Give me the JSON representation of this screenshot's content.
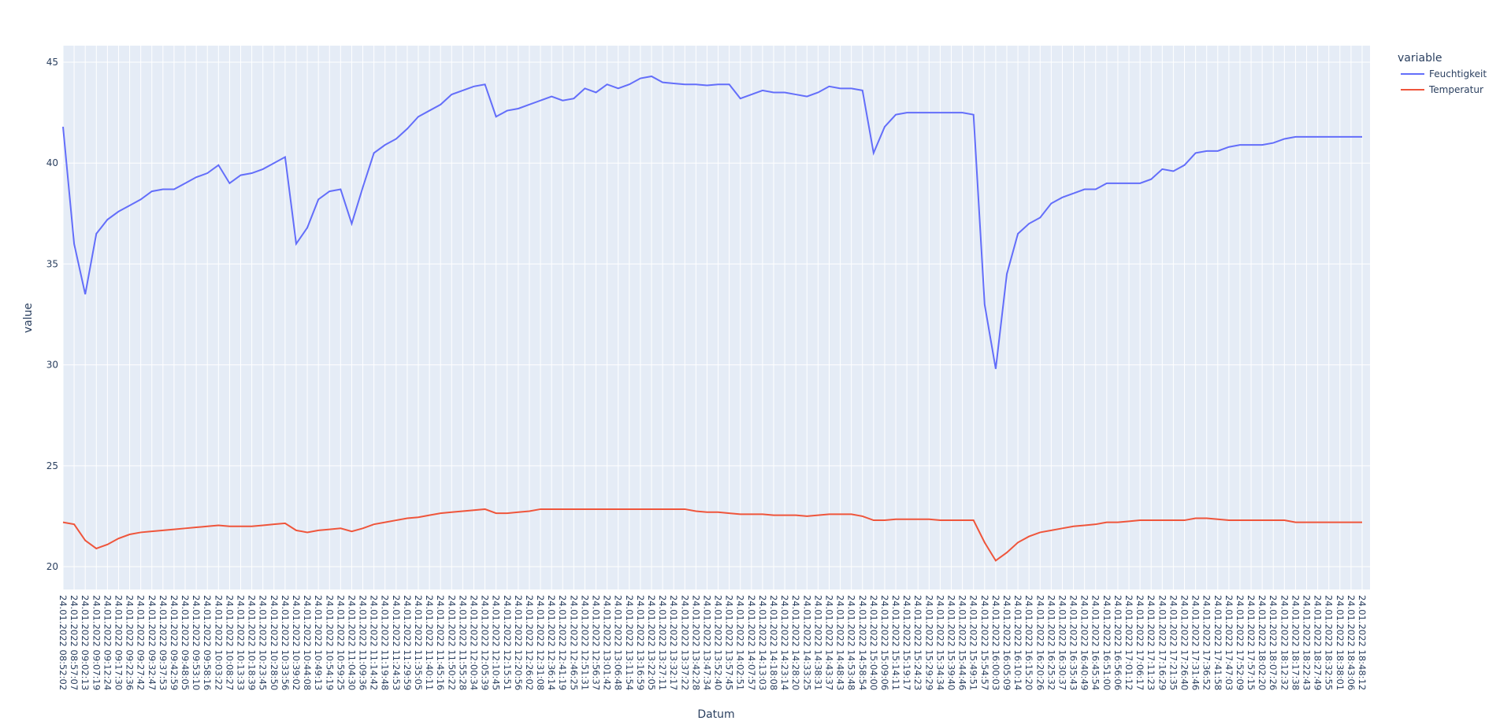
{
  "chart_data": {
    "type": "line",
    "x_label": "Datum",
    "y_label": "value",
    "legend_title": "variable",
    "categories": [
      "24.01.2022 08:52:02",
      "24.01.2022 08:57:07",
      "24.01.2022 09:02:13",
      "24.01.2022 09:07:19",
      "24.01.2022 09:12:24",
      "24.01.2022 09:17:30",
      "24.01.2022 09:22:36",
      "24.01.2022 09:27:42",
      "24.01.2022 09:32:47",
      "24.01.2022 09:37:53",
      "24.01.2022 09:42:59",
      "24.01.2022 09:48:05",
      "24.01.2022 09:53:10",
      "24.01.2022 09:58:16",
      "24.01.2022 10:03:22",
      "24.01.2022 10:08:27",
      "24.01.2022 10:13:33",
      "24.01.2022 10:18:39",
      "24.01.2022 10:23:45",
      "24.01.2022 10:28:50",
      "24.01.2022 10:33:56",
      "24.01.2022 10:39:02",
      "24.01.2022 10:44:08",
      "24.01.2022 10:49:13",
      "24.01.2022 10:54:19",
      "24.01.2022 10:59:25",
      "24.01.2022 11:04:30",
      "24.01.2022 11:09:36",
      "24.01.2022 11:14:42",
      "24.01.2022 11:19:48",
      "24.01.2022 11:24:53",
      "24.01.2022 11:29:59",
      "24.01.2022 11:35:05",
      "24.01.2022 11:40:11",
      "24.01.2022 11:45:16",
      "24.01.2022 11:50:22",
      "24.01.2022 11:55:28",
      "24.01.2022 12:00:34",
      "24.01.2022 12:05:39",
      "24.01.2022 12:10:45",
      "24.01.2022 12:15:51",
      "24.01.2022 12:20:56",
      "24.01.2022 12:26:02",
      "24.01.2022 12:31:08",
      "24.01.2022 12:36:14",
      "24.01.2022 12:41:19",
      "24.01.2022 12:46:25",
      "24.01.2022 12:51:31",
      "24.01.2022 12:56:37",
      "24.01.2022 13:01:42",
      "24.01.2022 13:06:48",
      "24.01.2022 13:11:54",
      "24.01.2022 13:16:59",
      "24.01.2022 13:22:05",
      "24.01.2022 13:27:11",
      "24.01.2022 13:32:17",
      "24.01.2022 13:37:22",
      "24.01.2022 13:42:28",
      "24.01.2022 13:47:34",
      "24.01.2022 13:52:40",
      "24.01.2022 13:57:45",
      "24.01.2022 14:02:51",
      "24.01.2022 14:07:57",
      "24.01.2022 14:13:03",
      "24.01.2022 14:18:08",
      "24.01.2022 14:23:14",
      "24.01.2022 14:28:20",
      "24.01.2022 14:33:25",
      "24.01.2022 14:38:31",
      "24.01.2022 14:43:37",
      "24.01.2022 14:48:43",
      "24.01.2022 14:53:48",
      "24.01.2022 14:58:54",
      "24.01.2022 15:04:00",
      "24.01.2022 15:09:06",
      "24.01.2022 15:14:11",
      "24.01.2022 15:19:17",
      "24.01.2022 15:24:23",
      "24.01.2022 15:29:29",
      "24.01.2022 15:34:34",
      "24.01.2022 15:39:40",
      "24.01.2022 15:44:46",
      "24.01.2022 15:49:51",
      "24.01.2022 15:54:57",
      "24.01.2022 16:00:03",
      "24.01.2022 16:05:09",
      "24.01.2022 16:10:14",
      "24.01.2022 16:15:20",
      "24.01.2022 16:20:26",
      "24.01.2022 16:25:32",
      "24.01.2022 16:30:37",
      "24.01.2022 16:35:43",
      "24.01.2022 16:40:49",
      "24.01.2022 16:45:54",
      "24.01.2022 16:51:00",
      "24.01.2022 16:56:06",
      "24.01.2022 17:01:12",
      "24.01.2022 17:06:17",
      "24.01.2022 17:11:23",
      "24.01.2022 17:16:29",
      "24.01.2022 17:21:35",
      "24.01.2022 17:26:40",
      "24.01.2022 17:31:46",
      "24.01.2022 17:36:52",
      "24.01.2022 17:41:58",
      "24.01.2022 17:47:03",
      "24.01.2022 17:52:09",
      "24.01.2022 17:57:15",
      "24.01.2022 18:02:20",
      "24.01.2022 18:07:26",
      "24.01.2022 18:12:32",
      "24.01.2022 18:17:38",
      "24.01.2022 18:22:43",
      "24.01.2022 18:27:49",
      "24.01.2022 18:32:55",
      "24.01.2022 18:38:01",
      "24.01.2022 18:43:06",
      "24.01.2022 18:48:12"
    ],
    "series": [
      {
        "name": "Feuchtigkeit",
        "color": "#636efa",
        "values": [
          41.8,
          36,
          33.5,
          36.5,
          37.2,
          37.6,
          37.9,
          38.2,
          38.6,
          38.7,
          38.7,
          39.0,
          39.3,
          39.5,
          39.9,
          39.0,
          39.4,
          39.5,
          39.7,
          40.0,
          40.3,
          36.0,
          36.8,
          38.2,
          38.6,
          38.7,
          37.0,
          38.8,
          40.5,
          40.9,
          41.2,
          41.7,
          42.3,
          42.6,
          42.9,
          43.4,
          43.6,
          43.8,
          43.9,
          42.3,
          42.6,
          42.7,
          42.9,
          43.1,
          43.3,
          43.1,
          43.2,
          43.7,
          43.5,
          43.9,
          43.7,
          43.9,
          44.2,
          44.3,
          44.0,
          43.95,
          43.9,
          43.9,
          43.85,
          43.9,
          43.9,
          43.2,
          43.4,
          43.6,
          43.5,
          43.5,
          43.4,
          43.3,
          43.5,
          43.8,
          43.7,
          43.7,
          43.6,
          40.5,
          41.8,
          42.4,
          42.5,
          42.5,
          42.5,
          42.5,
          42.5,
          42.5,
          42.4,
          33.0,
          29.8,
          34.5,
          36.5,
          37.0,
          37.3,
          38.0,
          38.3,
          38.5,
          38.7,
          38.7,
          39.0,
          39.0,
          39.0,
          39.0,
          39.2,
          39.7,
          39.6,
          39.9,
          40.5,
          40.6,
          40.6,
          40.8,
          40.9,
          40.9,
          40.9,
          41.0,
          41.2,
          41.3,
          41.3,
          41.3,
          41.3,
          41.3,
          41.3,
          41.3
        ]
      },
      {
        "name": "Temperatur",
        "color": "#EF553B",
        "values": [
          22.2,
          22.1,
          21.3,
          20.9,
          21.1,
          21.4,
          21.6,
          21.7,
          21.75,
          21.8,
          21.85,
          21.9,
          21.95,
          22.0,
          22.05,
          22.0,
          22.0,
          22.0,
          22.05,
          22.1,
          22.15,
          21.8,
          21.7,
          21.8,
          21.85,
          21.9,
          21.75,
          21.9,
          22.1,
          22.2,
          22.3,
          22.4,
          22.45,
          22.55,
          22.65,
          22.7,
          22.75,
          22.8,
          22.85,
          22.65,
          22.65,
          22.7,
          22.75,
          22.85,
          22.85,
          22.85,
          22.85,
          22.85,
          22.85,
          22.85,
          22.85,
          22.85,
          22.85,
          22.85,
          22.85,
          22.85,
          22.85,
          22.75,
          22.7,
          22.7,
          22.65,
          22.6,
          22.6,
          22.6,
          22.55,
          22.55,
          22.55,
          22.5,
          22.55,
          22.6,
          22.6,
          22.6,
          22.5,
          22.3,
          22.3,
          22.35,
          22.35,
          22.35,
          22.35,
          22.3,
          22.3,
          22.3,
          22.3,
          21.2,
          20.3,
          20.7,
          21.2,
          21.5,
          21.7,
          21.8,
          21.9,
          22.0,
          22.05,
          22.1,
          22.2,
          22.2,
          22.25,
          22.3,
          22.3,
          22.3,
          22.3,
          22.3,
          22.4,
          22.4,
          22.35,
          22.3,
          22.3,
          22.3,
          22.3,
          22.3,
          22.3,
          22.2,
          22.2,
          22.2,
          22.2,
          22.2,
          22.2,
          22.2
        ]
      }
    ],
    "ylim": [
      18.87,
      45.82
    ],
    "yticks": [
      20,
      25,
      30,
      35,
      40,
      45
    ],
    "grid": true,
    "legend": "top-right"
  }
}
